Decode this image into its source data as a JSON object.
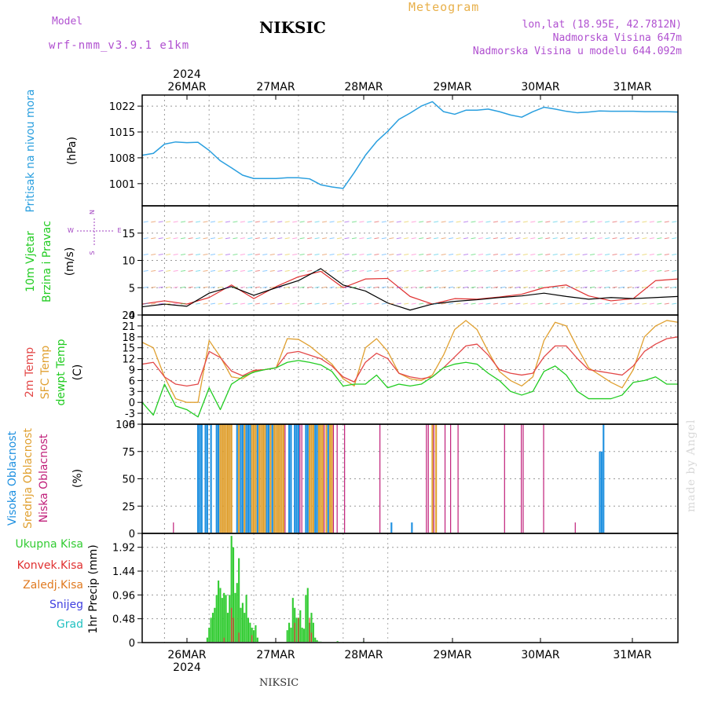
{
  "header": {
    "model_label": "Model",
    "model_name": "wrf-nmm_v3.9.1 e1km",
    "station": "NIKSIC",
    "product": "Meteogram",
    "coords": "lon,lat (18.95E, 42.7812N)",
    "altitude": "Nadmorska Visina 647m",
    "model_altitude": "Nadmorska Visina u modelu 644.092m",
    "footer_station": "NIKSIC",
    "watermark": "made by Angel"
  },
  "colors": {
    "pressure": "#2a9fdf",
    "wind_black": "#000000",
    "wind_red": "#e03030",
    "wind_purple": "#a040c0",
    "temp_2m": "#e34848",
    "temp_sfc": "#e0a030",
    "dewpt": "#22cc22",
    "cloud_high": "#1e90e0",
    "cloud_mid": "#e0a030",
    "cloud_low": "#c0207a",
    "precip_total": "#33cc33",
    "precip_conv": "#e03030",
    "precip_frozen": "#e07a20",
    "precip_snow": "#4040e0",
    "precip_hail": "#20c0c0",
    "header_model": "#b050d0",
    "header_meteo": "#e8b04a"
  },
  "icons": {
    "wind_rose": "wind-direction-rose-icon"
  },
  "chart_data": [
    {
      "type": "line",
      "title": "Pritisak na nivou mora",
      "ylabel": "(hPa)",
      "ylim": [
        995,
        1025
      ],
      "yticks": [
        "1001",
        "1008",
        "1015",
        "1022"
      ],
      "ytick_values": [
        1001,
        1008,
        1015,
        1022
      ],
      "top_date_labels": [
        "2024 26MAR",
        "27MAR",
        "28MAR",
        "29MAR",
        "30MAR",
        "31MAR"
      ],
      "x": [
        0,
        6,
        12,
        18,
        24,
        30,
        36,
        42,
        48,
        54,
        60,
        66,
        72,
        78,
        84,
        90,
        96,
        102,
        108,
        114,
        120,
        126,
        132,
        138,
        144,
        150,
        156,
        162,
        168,
        174,
        180,
        186,
        192,
        198,
        204,
        210,
        216,
        222,
        228,
        234,
        240,
        246,
        252,
        258,
        264,
        270,
        276,
        282,
        288
      ],
      "series": [
        {
          "values": [
            1008.7,
            1009.2,
            1011.7,
            1012.3,
            1012.1,
            1012.2,
            1010.0,
            1007.2,
            1005.3,
            1003.3,
            1002.4,
            1002.4,
            1002.4,
            1002.6,
            1002.6,
            1002.3,
            1000.7,
            1000.1,
            999.7,
            1004.0,
            1008.7,
            1012.4,
            1015.2,
            1018.4,
            1020.1,
            1022.0,
            1023.2,
            1020.5,
            1019.8,
            1020.9,
            1020.9,
            1021.2,
            1020.5,
            1019.6,
            1019.0,
            1020.5,
            1021.7,
            1021.2,
            1020.6,
            1020.2,
            1020.4,
            1020.7,
            1020.6,
            1020.6,
            1020.6,
            1020.5,
            1020.5,
            1020.5,
            1020.4
          ]
        }
      ]
    },
    {
      "type": "line",
      "title": "10m Vjetar Brzina i Pravac",
      "ylabel": "(m/s)",
      "ylim": [
        0,
        20
      ],
      "yticks": [
        "0",
        "5",
        "10",
        "15"
      ],
      "ytick_values": [
        0,
        5,
        10,
        15
      ],
      "rose_labels": [
        "N",
        "S",
        "W",
        "E"
      ],
      "x": [
        0,
        12,
        24,
        36,
        48,
        60,
        72,
        84,
        96,
        108,
        120,
        132,
        144,
        156,
        168,
        180,
        192,
        204,
        216,
        228,
        240,
        252,
        264,
        276,
        288
      ],
      "series": [
        {
          "name": "black",
          "values": [
            1.5,
            2.0,
            1.6,
            4.0,
            5.2,
            3.6,
            5.0,
            6.3,
            8.5,
            5.5,
            4.4,
            2.2,
            0.9,
            2.0,
            2.5,
            2.8,
            3.2,
            3.5,
            4.0,
            3.4,
            2.9,
            3.2,
            3.0,
            3.2,
            3.4
          ]
        },
        {
          "name": "red",
          "values": [
            2.0,
            2.6,
            2.0,
            3.2,
            5.5,
            3.0,
            5.2,
            7.0,
            8.0,
            5.0,
            6.6,
            6.7,
            3.4,
            2.0,
            3.0,
            2.9,
            3.3,
            3.8,
            5.0,
            5.5,
            3.5,
            2.6,
            3.0,
            6.3,
            6.6
          ]
        }
      ]
    },
    {
      "type": "line",
      "title": "2m Temp / SFC Temp / dewpt Temp",
      "ylabel": "(C)",
      "ylim": [
        -6,
        24
      ],
      "yticks": [
        "-6",
        "-3",
        "0",
        "3",
        "6",
        "9",
        "12",
        "15",
        "18",
        "21",
        "24"
      ],
      "ytick_values": [
        -6,
        -3,
        0,
        3,
        6,
        9,
        12,
        15,
        18,
        21,
        24
      ],
      "x": [
        0,
        6,
        12,
        18,
        24,
        30,
        36,
        42,
        48,
        54,
        60,
        66,
        72,
        78,
        84,
        90,
        96,
        102,
        108,
        114,
        120,
        126,
        132,
        138,
        144,
        150,
        156,
        162,
        168,
        174,
        180,
        186,
        192,
        198,
        204,
        210,
        216,
        222,
        228,
        234,
        240,
        246,
        252,
        258,
        264,
        270,
        276,
        282,
        288
      ],
      "series": [
        {
          "name": "2m Temp",
          "values": [
            10.5,
            11.0,
            7.0,
            5.0,
            4.5,
            5.0,
            14.0,
            12.3,
            8.6,
            7.3,
            8.8,
            9.0,
            9.5,
            13.5,
            14.0,
            13.0,
            12.0,
            10.0,
            7.0,
            5.6,
            11.0,
            13.5,
            12.0,
            8.0,
            7.0,
            6.5,
            7.0,
            9.5,
            12.5,
            15.5,
            16.0,
            13.0,
            9.0,
            8.0,
            7.5,
            8.0,
            12.5,
            15.5,
            15.5,
            12.0,
            9.0,
            8.5,
            8.0,
            7.5,
            10.0,
            14.0,
            16.0,
            17.5,
            18.0
          ]
        },
        {
          "name": "SFC Temp",
          "values": [
            16.5,
            15.0,
            7.0,
            1.0,
            0.0,
            0.0,
            17.0,
            12.5,
            7.0,
            6.5,
            8.5,
            9.0,
            9.5,
            17.5,
            17.3,
            15.5,
            13.0,
            10.5,
            6.5,
            4.5,
            15.0,
            17.5,
            14.0,
            8.0,
            6.5,
            6.0,
            7.5,
            13.0,
            20.0,
            22.5,
            20.0,
            14.0,
            8.5,
            6.0,
            4.5,
            7.0,
            17.0,
            22.0,
            21.0,
            15.0,
            9.5,
            7.5,
            5.5,
            4.0,
            9.0,
            18.0,
            21.0,
            22.5,
            22.0
          ]
        },
        {
          "name": "dewpt Temp",
          "values": [
            0.0,
            -3.5,
            5.0,
            -1.0,
            -2.0,
            -4.0,
            4.0,
            -2.0,
            5.0,
            7.0,
            8.3,
            9.0,
            9.5,
            11.0,
            11.5,
            11.0,
            10.3,
            8.5,
            4.5,
            5.0,
            5.0,
            7.5,
            4.0,
            5.0,
            4.5,
            5.0,
            7.0,
            9.5,
            10.5,
            11.0,
            10.5,
            8.0,
            6.0,
            3.0,
            2.0,
            3.0,
            8.5,
            10.0,
            7.5,
            3.0,
            1.0,
            1.0,
            1.0,
            2.0,
            5.5,
            6.0,
            7.0,
            5.0,
            5.0
          ]
        }
      ]
    },
    {
      "type": "bar",
      "title": "Visoka Oblacnost / Srednja Oblacnost / Niska Oblacnost",
      "ylabel": "(%)",
      "ylim": [
        0,
        100
      ],
      "yticks": [
        "0",
        "25",
        "50",
        "75",
        "100"
      ],
      "ytick_values": [
        0,
        25,
        50,
        75,
        100
      ],
      "series": [
        {
          "name": "Visoka Oblacnost",
          "x": [
            30,
            31,
            32,
            34,
            35,
            37,
            40,
            41,
            51,
            53,
            54,
            56,
            57,
            58,
            62,
            67,
            68,
            70,
            79,
            80,
            82,
            83,
            84,
            88,
            89,
            93,
            94,
            100,
            134,
            145,
            246,
            247,
            248
          ],
          "values": [
            100,
            100,
            100,
            100,
            100,
            100,
            100,
            100,
            100,
            100,
            100,
            100,
            100,
            100,
            100,
            100,
            100,
            100,
            100,
            100,
            100,
            100,
            100,
            100,
            100,
            100,
            100,
            100,
            10,
            10,
            75,
            75,
            100
          ]
        },
        {
          "name": "Srednja Oblacnost",
          "x": [
            42,
            43,
            44,
            45,
            46,
            47,
            48,
            52,
            55,
            59,
            60,
            61,
            63,
            64,
            65,
            66,
            69,
            71,
            72,
            73,
            74,
            75,
            76,
            90,
            91,
            92,
            95,
            96,
            97,
            99,
            101,
            102,
            156,
            158
          ],
          "values": [
            100,
            100,
            100,
            100,
            100,
            100,
            100,
            100,
            100,
            100,
            100,
            100,
            100,
            100,
            100,
            100,
            100,
            100,
            100,
            100,
            100,
            100,
            100,
            100,
            100,
            100,
            100,
            100,
            100,
            100,
            100,
            100,
            100,
            100
          ]
        },
        {
          "name": "Niska Oblacnost",
          "x": [
            17,
            77,
            85,
            86,
            98,
            103,
            105,
            109,
            128,
            153,
            154,
            157,
            163,
            166,
            170,
            195,
            204,
            205,
            216,
            233
          ],
          "values": [
            10,
            100,
            100,
            100,
            100,
            100,
            100,
            100,
            100,
            100,
            100,
            100,
            100,
            100,
            100,
            100,
            100,
            100,
            100,
            10
          ]
        }
      ]
    },
    {
      "type": "bar",
      "title": "1hr Precip",
      "ylabel": "1hr Precip (mm)",
      "ylim": [
        0,
        2.2
      ],
      "yticks": [
        "0",
        "0.48",
        "0.96",
        "1.44",
        "1.92"
      ],
      "ytick_values": [
        0,
        0.48,
        0.96,
        1.44,
        1.92
      ],
      "legend": [
        "Ukupna Kisa",
        "Konvek.Kisa",
        "Zaledj.Kisa",
        "Snijeg",
        "Grad"
      ],
      "bottom_date_labels": [
        "26MAR 2024",
        "27MAR",
        "28MAR",
        "29MAR",
        "30MAR",
        "31MAR"
      ],
      "series": [
        {
          "name": "Ukupna Kisa",
          "x": [
            35,
            36,
            37,
            38,
            39,
            40,
            41,
            42,
            43,
            44,
            45,
            46,
            47,
            48,
            49,
            50,
            51,
            52,
            53,
            54,
            55,
            56,
            57,
            58,
            59,
            60,
            61,
            62,
            78,
            79,
            80,
            81,
            82,
            83,
            84,
            85,
            86,
            87,
            88,
            89,
            90,
            91,
            92,
            93,
            94,
            95,
            96,
            105,
            118,
            119
          ],
          "values": [
            0.1,
            0.3,
            0.5,
            0.6,
            0.7,
            0.96,
            1.25,
            1.1,
            0.9,
            1.0,
            0.96,
            0.6,
            0.96,
            2.15,
            1.92,
            1.0,
            1.2,
            1.7,
            0.7,
            0.8,
            0.6,
            0.96,
            0.5,
            0.4,
            0.3,
            0.25,
            0.35,
            0.1,
            0.25,
            0.4,
            0.3,
            0.9,
            0.7,
            0.5,
            0.5,
            0.65,
            0.3,
            0.28,
            0.96,
            1.1,
            0.4,
            0.6,
            0.4,
            0.1,
            0.05,
            0.02,
            0.02,
            0.03,
            0.01,
            0.02
          ]
        },
        {
          "name": "Konvek.Kisa",
          "x": [
            44,
            48,
            49,
            52,
            59,
            82,
            84,
            90,
            91
          ],
          "values": [
            0.1,
            0.7,
            0.5,
            0.2,
            0.15,
            0.4,
            0.5,
            0.5,
            0.2
          ]
        },
        {
          "name": "Zaledj.Kisa",
          "x": [],
          "values": []
        },
        {
          "name": "Snijeg",
          "x": [],
          "values": []
        },
        {
          "name": "Grad",
          "x": [],
          "values": []
        }
      ]
    }
  ]
}
